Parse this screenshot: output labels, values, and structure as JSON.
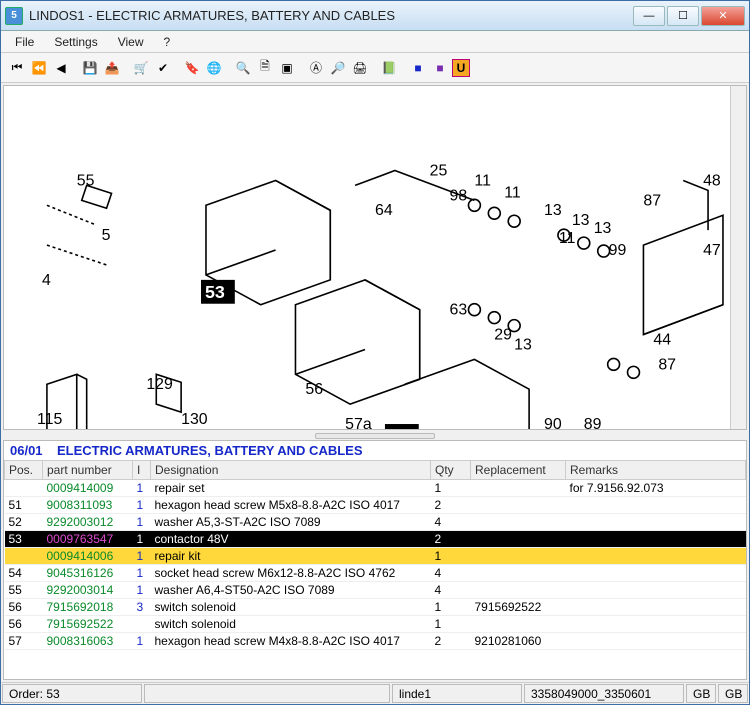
{
  "window": {
    "title": "LINDOS1 - ELECTRIC ARMATURES, BATTERY AND CABLES",
    "app_icon_glyph": "5"
  },
  "menu": {
    "items": [
      "File",
      "Settings",
      "View",
      "?"
    ]
  },
  "diagram": {
    "highlighted_label": "53",
    "callouts": [
      "55",
      "5",
      "4",
      "115",
      "129",
      "130",
      "56",
      "57a",
      "64",
      "25",
      "98",
      "11",
      "11",
      "13",
      "13",
      "63",
      "29",
      "13",
      "11",
      "13",
      "99",
      "87",
      "87",
      "47",
      "48",
      "44",
      "90",
      "89",
      "53",
      "53"
    ]
  },
  "section": {
    "code": "06/01",
    "title": "ELECTRIC ARMATURES, BATTERY AND CABLES"
  },
  "columns": [
    "Pos.",
    "part number",
    "I",
    "Designation",
    "Qty",
    "Replacement",
    "Remarks"
  ],
  "rows": [
    {
      "pos": "",
      "pn": "0009414009",
      "i": "1",
      "desig": "repair set",
      "qty": "1",
      "rep": "",
      "rem": "for 7.9156.92.073",
      "sel": ""
    },
    {
      "pos": "51",
      "pn": "9008311093",
      "i": "1",
      "desig": "hexagon head screw M5x8-8.8-A2C  ISO 4017",
      "qty": "2",
      "rep": "",
      "rem": "",
      "sel": ""
    },
    {
      "pos": "52",
      "pn": "9292003012",
      "i": "1",
      "desig": "washer A5,3-ST-A2C  ISO 7089",
      "qty": "4",
      "rep": "",
      "rem": "",
      "sel": ""
    },
    {
      "pos": "53",
      "pn": "0009763547",
      "i": "1",
      "desig": "contactor 48V",
      "qty": "2",
      "rep": "",
      "rem": "",
      "sel": "black"
    },
    {
      "pos": "",
      "pn": "0009414006",
      "i": "1",
      "desig": "repair kit",
      "qty": "1",
      "rep": "",
      "rem": "",
      "sel": "yellow"
    },
    {
      "pos": "54",
      "pn": "9045316126",
      "i": "1",
      "desig": "socket head screw M6x12-8.8-A2C  ISO 4762",
      "qty": "4",
      "rep": "",
      "rem": "",
      "sel": ""
    },
    {
      "pos": "55",
      "pn": "9292003014",
      "i": "1",
      "desig": "washer A6,4-ST50-A2C  ISO 7089",
      "qty": "4",
      "rep": "",
      "rem": "",
      "sel": ""
    },
    {
      "pos": "56",
      "pn": "7915692018",
      "i": "3",
      "desig": "switch solenoid",
      "qty": "1",
      "rep": "7915692522",
      "rem": "",
      "sel": ""
    },
    {
      "pos": "56",
      "pn": "7915692522",
      "i": "",
      "desig": "switch solenoid",
      "qty": "1",
      "rep": "",
      "rem": "",
      "sel": ""
    },
    {
      "pos": "57",
      "pn": "9008316063",
      "i": "1",
      "desig": "hexagon head screw M4x8-8.8-A2C  ISO 4017",
      "qty": "2",
      "rep": "9210281060",
      "rem": "",
      "sel": ""
    }
  ],
  "status": {
    "order": "Order: 53",
    "user": "linde1",
    "doc": "3358049000_3350601",
    "lang1": "GB",
    "lang2": "GB"
  },
  "colors": {
    "link_blue": "#1628c9",
    "pn_green": "#0a8a2a",
    "pn_magenta": "#e04bd0",
    "sel_black": "#000000",
    "sel_yellow": "#ffd93b"
  }
}
